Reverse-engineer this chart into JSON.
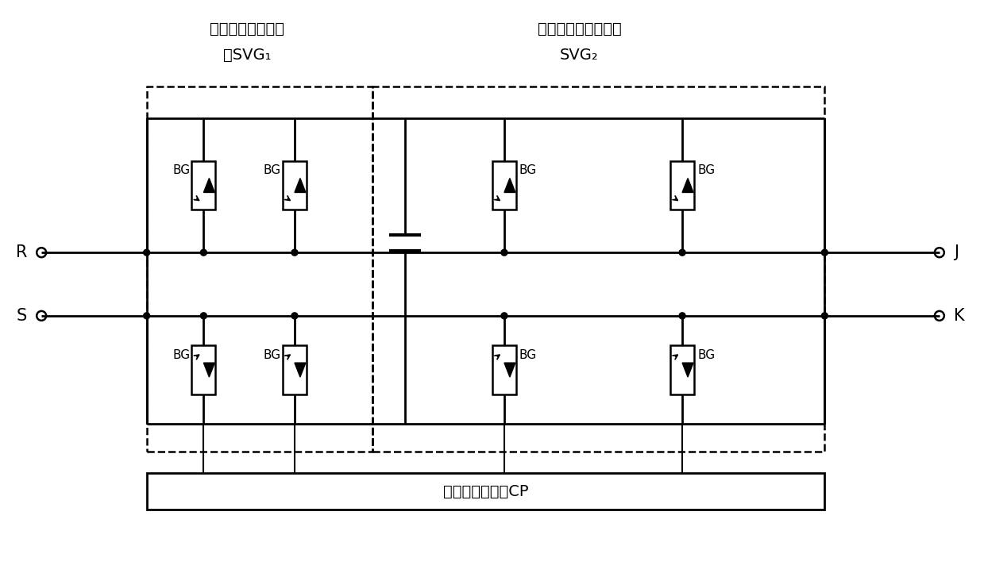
{
  "title1": "第一大功率开关器",
  "title1b": "件SVG₁",
  "title2": "第二大功率开关器件",
  "title2b": "SVG₂",
  "label_R": "R",
  "label_S": "S",
  "label_J": "J",
  "label_K": "K",
  "label_CP": "脉宽调制控制器CP",
  "label_BG": "BG",
  "bg_color": "#ffffff",
  "figsize": [
    12.39,
    7.27
  ],
  "dpi": 100
}
